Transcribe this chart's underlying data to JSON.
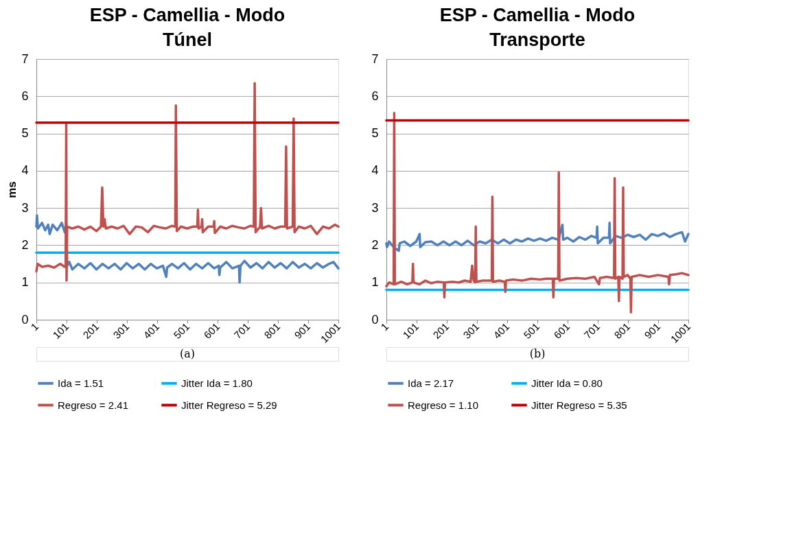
{
  "chart_data": [
    {
      "type": "line",
      "title": "ESP - Camellia - Modo Túnel",
      "ylabel": "ms",
      "xlim": [
        1,
        1001
      ],
      "xticks": [
        1,
        101,
        201,
        301,
        401,
        501,
        601,
        701,
        801,
        901,
        1001
      ],
      "ylim": [
        0,
        7
      ],
      "yticks": [
        0,
        1,
        2,
        3,
        4,
        5,
        6,
        7
      ],
      "grid": "y",
      "legend": "bottom",
      "annotations": [
        "(a)"
      ],
      "series": [
        {
          "name": "Ida = 1.51",
          "color": "#4f81bd",
          "x": [
            1,
            3,
            6,
            20,
            30,
            40,
            45,
            55,
            70,
            85,
            95,
            100,
            103,
            110,
            120,
            140,
            160,
            180,
            200,
            220,
            240,
            260,
            280,
            300,
            320,
            340,
            360,
            380,
            400,
            420,
            431,
            434,
            450,
            470,
            490,
            510,
            530,
            550,
            570,
            590,
            605,
            607,
            610,
            630,
            650,
            672,
            674,
            677,
            690,
            710,
            730,
            750,
            770,
            790,
            810,
            830,
            850,
            870,
            890,
            910,
            930,
            950,
            970,
            985,
            1001
          ],
          "values": [
            2.5,
            2.8,
            2.45,
            2.6,
            2.4,
            2.55,
            2.3,
            2.55,
            2.4,
            2.6,
            2.35,
            2.6,
            1.45,
            1.55,
            1.35,
            1.5,
            1.38,
            1.52,
            1.35,
            1.5,
            1.38,
            1.5,
            1.35,
            1.52,
            1.38,
            1.5,
            1.35,
            1.5,
            1.38,
            1.45,
            1.15,
            1.4,
            1.5,
            1.38,
            1.52,
            1.35,
            1.5,
            1.38,
            1.52,
            1.38,
            1.45,
            1.2,
            1.4,
            1.55,
            1.38,
            1.45,
            1.0,
            1.45,
            1.58,
            1.4,
            1.52,
            1.38,
            1.55,
            1.4,
            1.52,
            1.38,
            1.55,
            1.4,
            1.5,
            1.38,
            1.52,
            1.4,
            1.5,
            1.55,
            1.38
          ]
        },
        {
          "name": "Jitter Ida = 1.80",
          "color": "#00b0f0",
          "x": [
            1,
            1001
          ],
          "values": [
            1.8,
            1.8
          ]
        },
        {
          "name": "Regreso = 2.41",
          "color": "#c0504d",
          "x": [
            1,
            5,
            20,
            40,
            60,
            80,
            95,
            98,
            100,
            101,
            103,
            120,
            140,
            160,
            180,
            200,
            215,
            219,
            223,
            227,
            231,
            250,
            270,
            290,
            310,
            330,
            350,
            370,
            390,
            410,
            430,
            450,
            461,
            463,
            466,
            480,
            500,
            520,
            534,
            536,
            538,
            548,
            550,
            552,
            570,
            588,
            590,
            592,
            610,
            630,
            650,
            670,
            690,
            710,
            721,
            724,
            727,
            742,
            745,
            748,
            770,
            790,
            810,
            825,
            828,
            831,
            850,
            853,
            856,
            870,
            890,
            910,
            930,
            950,
            970,
            990,
            1001
          ],
          "values": [
            1.3,
            1.5,
            1.42,
            1.45,
            1.4,
            1.5,
            1.42,
            1.45,
            5.25,
            1.05,
            2.5,
            2.45,
            2.5,
            2.42,
            2.5,
            2.38,
            2.5,
            3.55,
            2.5,
            2.7,
            2.45,
            2.5,
            2.45,
            2.52,
            2.3,
            2.5,
            2.48,
            2.35,
            2.52,
            2.48,
            2.45,
            2.52,
            2.5,
            5.75,
            2.38,
            2.5,
            2.45,
            2.5,
            2.5,
            2.95,
            2.45,
            2.5,
            2.7,
            2.35,
            2.5,
            2.5,
            2.65,
            2.33,
            2.5,
            2.45,
            2.52,
            2.48,
            2.45,
            2.52,
            2.5,
            6.35,
            2.35,
            2.5,
            3.0,
            2.45,
            2.52,
            2.45,
            2.5,
            2.5,
            4.65,
            2.45,
            2.5,
            5.4,
            2.35,
            2.5,
            2.45,
            2.52,
            2.3,
            2.5,
            2.45,
            2.55,
            2.5
          ]
        },
        {
          "name": "Jitter Regreso = 5.29",
          "color": "#c00000",
          "x": [
            1,
            1001
          ],
          "values": [
            5.29,
            5.29
          ]
        }
      ]
    },
    {
      "type": "line",
      "title": "ESP - Camellia - Modo Transporte",
      "xlim": [
        1,
        1001
      ],
      "xticks": [
        1,
        101,
        201,
        301,
        401,
        501,
        601,
        701,
        801,
        901,
        1001
      ],
      "ylim": [
        0,
        7
      ],
      "yticks": [
        0,
        1,
        2,
        3,
        4,
        5,
        6,
        7
      ],
      "grid": "y",
      "legend": "bottom",
      "annotations": [
        "(b)"
      ],
      "series": [
        {
          "name": "Ida = 2.17",
          "color": "#4f81bd",
          "x": [
            1,
            3,
            10,
            25,
            42,
            45,
            60,
            80,
            100,
            111,
            113,
            130,
            150,
            170,
            190,
            210,
            230,
            250,
            270,
            290,
            310,
            330,
            350,
            370,
            390,
            410,
            430,
            450,
            470,
            490,
            510,
            530,
            550,
            570,
            584,
            586,
            600,
            620,
            640,
            660,
            680,
            697,
            699,
            701,
            720,
            738,
            740,
            742,
            760,
            780,
            800,
            820,
            840,
            860,
            880,
            900,
            920,
            940,
            960,
            980,
            990,
            1001
          ],
          "values": [
            2.05,
            1.95,
            2.1,
            1.95,
            1.85,
            2.05,
            2.1,
            1.98,
            2.1,
            2.3,
            1.95,
            2.08,
            2.1,
            2.0,
            2.1,
            2.0,
            2.1,
            2.0,
            2.12,
            2.0,
            2.1,
            2.05,
            2.15,
            2.05,
            2.15,
            2.05,
            2.15,
            2.1,
            2.18,
            2.12,
            2.18,
            2.12,
            2.2,
            2.15,
            2.55,
            2.15,
            2.2,
            2.1,
            2.22,
            2.15,
            2.25,
            2.2,
            2.5,
            2.05,
            2.2,
            2.2,
            2.6,
            2.05,
            2.25,
            2.2,
            2.28,
            2.22,
            2.28,
            2.15,
            2.3,
            2.25,
            2.32,
            2.22,
            2.3,
            2.35,
            2.1,
            2.3
          ]
        },
        {
          "name": "Jitter Ida = 0.80",
          "color": "#00b0f0",
          "x": [
            1,
            1001
          ],
          "values": [
            0.8,
            0.8
          ]
        },
        {
          "name": "Regreso = 1.10",
          "color": "#c0504d",
          "x": [
            1,
            10,
            25,
            27,
            29,
            50,
            70,
            87,
            89,
            91,
            110,
            130,
            150,
            170,
            191,
            193,
            195,
            220,
            240,
            260,
            280,
            285,
            290,
            295,
            297,
            299,
            320,
            350,
            352,
            354,
            375,
            393,
            395,
            397,
            420,
            450,
            480,
            510,
            530,
            552,
            554,
            556,
            570,
            572,
            574,
            600,
            630,
            660,
            690,
            705,
            708,
            730,
            755,
            757,
            759,
            769,
            771,
            773,
            783,
            785,
            787,
            800,
            809,
            811,
            813,
            840,
            870,
            900,
            935,
            937,
            940,
            960,
            980,
            1001
          ],
          "values": [
            0.9,
            1.0,
            0.95,
            5.55,
            0.95,
            1.02,
            0.95,
            1.0,
            1.5,
            1.0,
            0.95,
            1.05,
            0.98,
            1.02,
            1.0,
            0.6,
            1.0,
            1.02,
            1.0,
            1.05,
            1.02,
            1.45,
            1.05,
            1.0,
            2.5,
            1.02,
            1.05,
            1.05,
            3.3,
            1.02,
            1.05,
            1.02,
            0.75,
            1.05,
            1.08,
            1.05,
            1.1,
            1.08,
            1.1,
            1.1,
            0.6,
            1.1,
            1.1,
            3.95,
            1.05,
            1.1,
            1.12,
            1.1,
            1.15,
            0.95,
            1.12,
            1.15,
            1.12,
            3.8,
            1.1,
            1.15,
            0.5,
            1.15,
            1.1,
            3.55,
            1.15,
            1.2,
            1.1,
            0.2,
            1.15,
            1.2,
            1.15,
            1.2,
            1.15,
            0.95,
            1.2,
            1.22,
            1.25,
            1.2
          ]
        },
        {
          "name": "Jitter Regreso = 5.35",
          "color": "#c00000",
          "x": [
            1,
            1001
          ],
          "values": [
            5.35,
            5.35
          ]
        }
      ]
    }
  ]
}
